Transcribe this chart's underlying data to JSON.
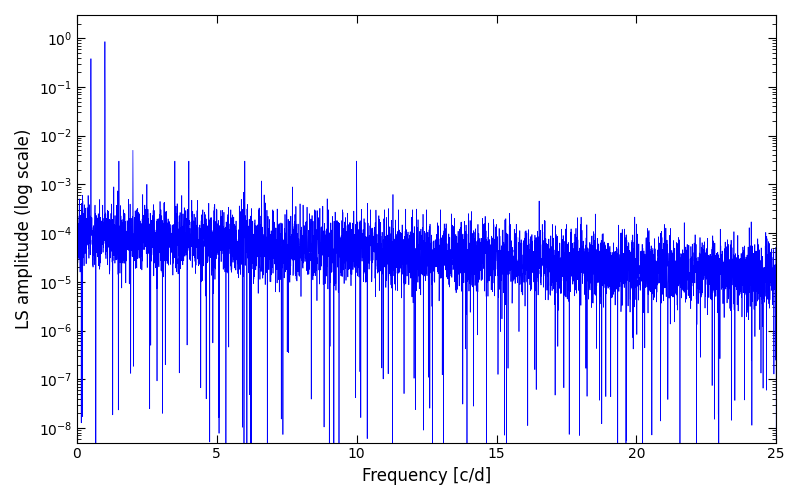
{
  "xlabel": "Frequency [c/d]",
  "ylabel": "LS amplitude (log scale)",
  "xlim": [
    0,
    25
  ],
  "ylim": [
    5e-09,
    3
  ],
  "line_color": "#0000ff",
  "line_width": 0.5,
  "freq_min": 0.001,
  "freq_max": 25.0,
  "num_points": 6000,
  "seed": 7,
  "background_color": "#ffffff",
  "figsize": [
    8.0,
    5.0
  ],
  "dpi": 100
}
